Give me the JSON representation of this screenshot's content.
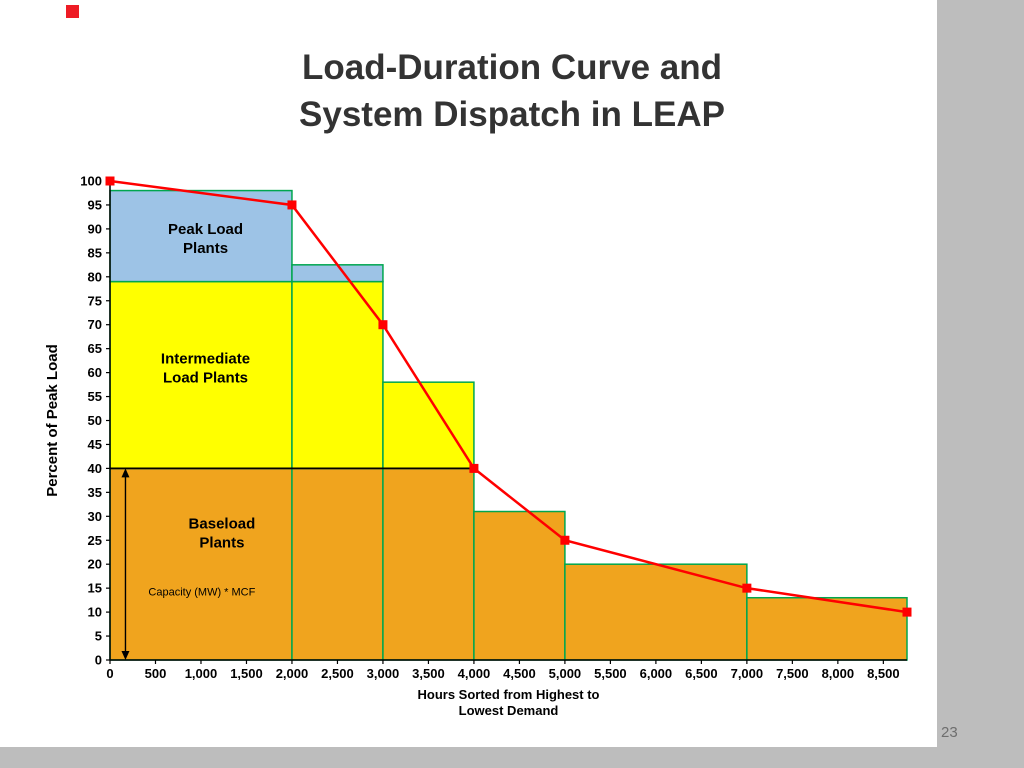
{
  "slide": {
    "title_lines": [
      "Load-Duration Curve and",
      "System Dispatch in LEAP"
    ],
    "page_number": "23",
    "accent_color": "#ee1c25",
    "margin_color": "#bdbdbd"
  },
  "chart_data": {
    "type": "area",
    "title": "",
    "xlabel": "Hours Sorted from Highest to Lowest Demand",
    "xlabel_lines": [
      "Hours Sorted from Highest to",
      "Lowest Demand"
    ],
    "ylabel": "Percent of Peak Load",
    "xlim": [
      0,
      8760
    ],
    "ylim": [
      0,
      100
    ],
    "grid": false,
    "legend": false,
    "x_tick_values": [
      0,
      500,
      1000,
      1500,
      2000,
      2500,
      3000,
      3500,
      4000,
      4500,
      5000,
      5500,
      6000,
      6500,
      7000,
      7500,
      8000,
      8500
    ],
    "x_tick_labels": [
      "0",
      "500",
      "1,000",
      "1,500",
      "2,000",
      "2,500",
      "3,000",
      "3,500",
      "4,000",
      "4,500",
      "5,000",
      "5,500",
      "6,000",
      "6,500",
      "7,000",
      "7,500",
      "8,000",
      "8,500"
    ],
    "y_tick_values": [
      0,
      5,
      10,
      15,
      20,
      25,
      30,
      35,
      40,
      45,
      50,
      55,
      60,
      65,
      70,
      75,
      80,
      85,
      90,
      95,
      100
    ],
    "load_duration_curve": {
      "name": "Load-duration curve",
      "x": [
        0,
        2000,
        3000,
        4000,
        5000,
        7000,
        8760
      ],
      "y": [
        100,
        95,
        70,
        40,
        25,
        15,
        10
      ]
    },
    "dispatch_steps": [
      {
        "x0": 0,
        "x1": 2000,
        "baseload_top": 40,
        "intermediate_top": 79,
        "peak_top": 98
      },
      {
        "x0": 2000,
        "x1": 3000,
        "baseload_top": 40,
        "intermediate_top": 79,
        "peak_top": 82.5
      },
      {
        "x0": 3000,
        "x1": 4000,
        "baseload_top": 40,
        "intermediate_top": 58,
        "peak_top": null
      },
      {
        "x0": 4000,
        "x1": 5000,
        "baseload_top": 31,
        "intermediate_top": null,
        "peak_top": null
      },
      {
        "x0": 5000,
        "x1": 7000,
        "baseload_top": 20,
        "intermediate_top": null,
        "peak_top": null
      },
      {
        "x0": 7000,
        "x1": 8760,
        "baseload_top": 13,
        "intermediate_top": null,
        "peak_top": null
      }
    ],
    "baseload_capacity_line": {
      "y": 40,
      "x0": 0,
      "x1": 4000
    },
    "capacity_arrow": {
      "x": 170,
      "y0": 0,
      "y1": 40
    },
    "annotations": [
      {
        "name": "peak-load-plants-label",
        "lines": [
          "Peak Load",
          "Plants"
        ],
        "x": 1050,
        "y": 88,
        "size": 15,
        "bold": true
      },
      {
        "name": "intermediate-load-plants-label",
        "lines": [
          "Intermediate",
          "Load Plants"
        ],
        "x": 1050,
        "y": 61,
        "size": 15,
        "bold": true
      },
      {
        "name": "baseload-plants-label",
        "lines": [
          "Baseload",
          "Plants"
        ],
        "x": 1230,
        "y": 26.5,
        "size": 15,
        "bold": true
      },
      {
        "name": "capacity-mcf-label",
        "lines": [
          "Capacity (MW) * MCF"
        ],
        "x": 1010,
        "y": 14.5,
        "size": 11,
        "bold": false
      }
    ],
    "colors": {
      "baseload": "#F0A41E",
      "intermediate": "#FFFF00",
      "peak": "#9DC3E6",
      "step_outline": "#00A64F",
      "curve": "#FF0000",
      "axis": "#000000"
    }
  }
}
